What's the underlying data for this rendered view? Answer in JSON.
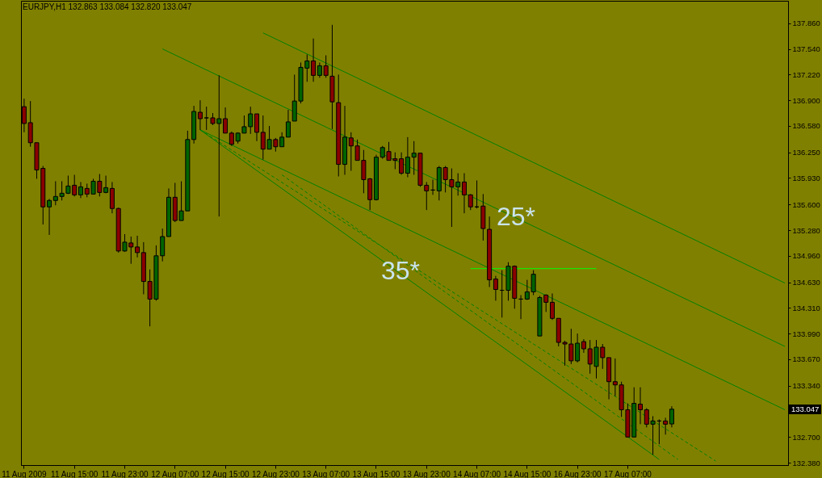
{
  "chart_data": {
    "type": "candlestick",
    "title": "EURJPY,H1  132.863 133.084 132.820 133.047",
    "categories": [
      "11 Aug 2009",
      null,
      null,
      null,
      null,
      null,
      null,
      null,
      "11 Aug 15:00",
      null,
      null,
      null,
      null,
      null,
      null,
      null,
      "11 Aug 23:00",
      null,
      null,
      null,
      null,
      null,
      null,
      null,
      "12 Aug 07:00",
      null,
      null,
      null,
      null,
      null,
      null,
      null,
      "12 Aug 15:00",
      null,
      null,
      null,
      null,
      null,
      null,
      null,
      "12 Aug 23:00",
      null,
      null,
      null,
      null,
      null,
      null,
      null,
      "13 Aug 07:00",
      null,
      null,
      null,
      null,
      null,
      null,
      null,
      "13 Aug 15:00",
      null,
      null,
      null,
      null,
      null,
      null,
      null,
      "13 Aug 23:00",
      null,
      null,
      null,
      null,
      null,
      null,
      null,
      "14 Aug 07:00",
      null,
      null,
      null,
      null,
      null,
      null,
      null,
      "14 Aug 15:00",
      null,
      null,
      null,
      null,
      null,
      null,
      null,
      "16 Aug 23:00",
      null,
      null,
      null,
      null,
      null,
      null,
      null,
      "17 Aug 07:00",
      null,
      null,
      null,
      null,
      null,
      null,
      null,
      null,
      null,
      null,
      null,
      null,
      null,
      null,
      null,
      null,
      null,
      null,
      null,
      null,
      null,
      null,
      null,
      null,
      null
    ],
    "ohlc": [
      [
        136.82,
        136.92,
        136.5,
        136.61
      ],
      [
        136.62,
        136.89,
        136.32,
        136.37
      ],
      [
        136.37,
        136.37,
        135.92,
        136.03
      ],
      [
        136.05,
        136.08,
        135.35,
        135.57
      ],
      [
        135.57,
        135.67,
        135.22,
        135.65
      ],
      [
        135.65,
        135.89,
        135.59,
        135.7
      ],
      [
        135.7,
        135.89,
        135.65,
        135.74
      ],
      [
        135.74,
        135.96,
        135.73,
        135.83
      ],
      [
        135.84,
        135.97,
        135.7,
        135.72
      ],
      [
        135.72,
        135.88,
        135.68,
        135.82
      ],
      [
        135.8,
        135.86,
        135.69,
        135.73
      ],
      [
        135.73,
        135.92,
        135.73,
        135.89
      ],
      [
        135.89,
        135.98,
        135.7,
        135.75
      ],
      [
        135.75,
        135.96,
        135.74,
        135.81
      ],
      [
        135.8,
        135.88,
        135.49,
        135.55
      ],
      [
        135.55,
        135.56,
        135.0,
        135.02
      ],
      [
        135.02,
        135.23,
        135.01,
        135.13
      ],
      [
        135.12,
        135.2,
        134.86,
        135.07
      ],
      [
        135.07,
        135.21,
        134.94,
        135.0
      ],
      [
        135.0,
        135.13,
        134.48,
        134.64
      ],
      [
        134.64,
        134.79,
        134.08,
        134.42
      ],
      [
        134.42,
        135.09,
        134.4,
        134.96
      ],
      [
        134.96,
        135.3,
        134.89,
        135.2
      ],
      [
        135.2,
        135.8,
        135.2,
        135.69
      ],
      [
        135.69,
        135.87,
        135.38,
        135.4
      ],
      [
        135.4,
        135.89,
        135.4,
        135.52
      ],
      [
        135.52,
        136.52,
        135.52,
        136.41
      ],
      [
        136.41,
        136.83,
        136.36,
        136.76
      ],
      [
        136.75,
        136.9,
        136.53,
        136.67
      ],
      [
        136.68,
        136.82,
        136.53,
        136.68
      ],
      [
        136.68,
        136.74,
        136.59,
        136.61
      ],
      [
        136.61,
        137.21,
        135.45,
        136.67
      ],
      [
        136.67,
        136.81,
        136.49,
        136.49
      ],
      [
        136.49,
        136.51,
        136.33,
        136.35
      ],
      [
        136.39,
        136.5,
        136.36,
        136.49
      ],
      [
        136.49,
        136.71,
        136.49,
        136.57
      ],
      [
        136.57,
        136.82,
        136.48,
        136.73
      ],
      [
        136.73,
        136.73,
        136.39,
        136.5
      ],
      [
        136.5,
        136.71,
        136.16,
        136.29
      ],
      [
        136.29,
        136.58,
        136.29,
        136.41
      ],
      [
        136.41,
        136.43,
        136.26,
        136.32
      ],
      [
        136.32,
        136.5,
        136.32,
        136.44
      ],
      [
        136.44,
        136.78,
        136.44,
        136.63
      ],
      [
        136.64,
        137.22,
        136.64,
        136.89
      ],
      [
        136.89,
        137.37,
        136.86,
        137.31
      ],
      [
        137.3,
        137.47,
        137.13,
        137.39
      ],
      [
        137.39,
        137.67,
        137.13,
        137.21
      ],
      [
        137.21,
        137.37,
        137.18,
        137.33
      ],
      [
        137.33,
        137.46,
        137.18,
        137.21
      ],
      [
        137.2,
        137.84,
        136.54,
        136.88
      ],
      [
        136.87,
        137.22,
        135.95,
        136.1
      ],
      [
        136.1,
        136.83,
        135.97,
        136.44
      ],
      [
        136.43,
        136.5,
        136.02,
        136.33
      ],
      [
        136.33,
        136.41,
        136.15,
        136.15
      ],
      [
        136.15,
        136.28,
        135.74,
        135.91
      ],
      [
        135.92,
        135.93,
        135.53,
        135.66
      ],
      [
        135.66,
        136.22,
        135.65,
        136.19
      ],
      [
        136.19,
        136.33,
        136.17,
        136.31
      ],
      [
        136.26,
        136.38,
        136.15,
        136.15
      ],
      [
        136.17,
        136.25,
        136.04,
        136.15
      ],
      [
        136.17,
        136.25,
        135.97,
        135.99
      ],
      [
        135.99,
        136.44,
        135.94,
        136.19
      ],
      [
        136.19,
        136.39,
        135.97,
        136.24
      ],
      [
        136.24,
        136.24,
        135.82,
        135.84
      ],
      [
        135.84,
        135.88,
        135.53,
        135.77
      ],
      [
        135.78,
        135.91,
        135.72,
        135.78
      ],
      [
        135.77,
        136.08,
        135.65,
        136.06
      ],
      [
        136.06,
        136.08,
        135.75,
        135.91
      ],
      [
        135.91,
        136.05,
        135.32,
        135.82
      ],
      [
        135.82,
        135.99,
        135.71,
        135.88
      ],
      [
        135.88,
        135.99,
        135.49,
        135.72
      ],
      [
        135.72,
        135.73,
        135.53,
        135.57
      ],
      [
        135.57,
        135.9,
        135.55,
        135.57
      ],
      [
        135.58,
        135.73,
        135.15,
        135.3
      ],
      [
        135.29,
        135.45,
        134.57,
        134.66
      ],
      [
        134.67,
        134.71,
        134.4,
        134.54
      ],
      [
        134.53,
        134.78,
        134.19,
        134.53
      ],
      [
        134.53,
        134.88,
        134.4,
        134.83
      ],
      [
        134.83,
        134.84,
        134.3,
        134.43
      ],
      [
        134.42,
        134.47,
        134.17,
        134.42
      ],
      [
        134.42,
        134.66,
        134.41,
        134.51
      ],
      [
        134.51,
        134.78,
        134.47,
        134.73
      ],
      [
        133.96,
        134.46,
        133.96,
        134.44
      ],
      [
        134.47,
        134.48,
        134.26,
        134.38
      ],
      [
        134.38,
        134.49,
        134.16,
        134.18
      ],
      [
        134.18,
        134.18,
        133.83,
        133.88
      ],
      [
        133.88,
        133.9,
        133.59,
        133.86
      ],
      [
        133.86,
        134.05,
        133.61,
        133.65
      ],
      [
        133.65,
        133.99,
        133.63,
        133.87
      ],
      [
        133.89,
        133.92,
        133.75,
        133.8
      ],
      [
        133.8,
        133.91,
        133.49,
        133.61
      ],
      [
        133.58,
        133.91,
        133.43,
        133.82
      ],
      [
        133.82,
        133.86,
        133.55,
        133.69
      ],
      [
        133.69,
        133.69,
        133.17,
        133.39
      ],
      [
        133.39,
        133.68,
        133.21,
        133.35
      ],
      [
        133.35,
        133.39,
        132.95,
        133.04
      ],
      [
        133.04,
        133.12,
        132.7,
        132.7
      ],
      [
        132.7,
        133.32,
        132.7,
        133.12
      ],
      [
        133.11,
        133.32,
        132.86,
        133.04
      ],
      [
        133.04,
        133.06,
        132.82,
        132.86
      ],
      [
        132.86,
        132.96,
        132.48,
        132.9
      ],
      [
        132.9,
        132.92,
        132.61,
        132.9
      ],
      [
        132.9,
        132.94,
        132.73,
        132.86
      ],
      [
        132.863,
        133.084,
        132.82,
        133.047
      ],
      null,
      null,
      null,
      null,
      null,
      null,
      null,
      null,
      null,
      null,
      null,
      null,
      null,
      null,
      null,
      null,
      null,
      null
    ],
    "series": [
      {
        "type": "line",
        "color": "#007f00",
        "line_style": "solid",
        "values": [
          null,
          null,
          null,
          null,
          null,
          null,
          null,
          null,
          null,
          null,
          null,
          null,
          null,
          null,
          null,
          null,
          null,
          null,
          null,
          null,
          null,
          null,
          null,
          null,
          null,
          null,
          null,
          null,
          null,
          null,
          null,
          null,
          null,
          null,
          null,
          null,
          null,
          null,
          137.74,
          null,
          null,
          null,
          null,
          null,
          null,
          null,
          null,
          null,
          null,
          null,
          null,
          null,
          null,
          null,
          null,
          null,
          null,
          null,
          null,
          null,
          null,
          null,
          null,
          null,
          null,
          null,
          null,
          null,
          null,
          null,
          null,
          null,
          null,
          null,
          null,
          null,
          null,
          null,
          null,
          null,
          null,
          null,
          null,
          null,
          null,
          null,
          null,
          null,
          null,
          null,
          null,
          null,
          null,
          null,
          null,
          null,
          null,
          null,
          null,
          null,
          null,
          null,
          null,
          null,
          null,
          null,
          null,
          null,
          null,
          null,
          null,
          null,
          null,
          null,
          null,
          null,
          null,
          null,
          null,
          null,
          null,
          134.62
        ]
      },
      {
        "type": "line",
        "color": "#007f00",
        "line_style": "solid",
        "values": [
          null,
          null,
          null,
          null,
          null,
          null,
          null,
          null,
          null,
          null,
          null,
          null,
          null,
          null,
          null,
          null,
          null,
          null,
          null,
          null,
          null,
          null,
          137.54,
          null,
          null,
          null,
          null,
          null,
          null,
          null,
          null,
          null,
          null,
          null,
          null,
          null,
          null,
          null,
          null,
          null,
          null,
          null,
          null,
          null,
          null,
          null,
          null,
          null,
          null,
          null,
          null,
          null,
          null,
          null,
          null,
          null,
          null,
          null,
          null,
          null,
          null,
          null,
          null,
          null,
          null,
          null,
          null,
          null,
          null,
          null,
          null,
          null,
          null,
          null,
          null,
          null,
          null,
          null,
          null,
          null,
          null,
          null,
          null,
          null,
          null,
          null,
          null,
          null,
          null,
          null,
          null,
          null,
          null,
          null,
          null,
          null,
          null,
          null,
          null,
          null,
          null,
          null,
          null,
          null,
          null,
          null,
          null,
          null,
          null,
          null,
          null,
          null,
          null,
          null,
          null,
          null,
          null,
          null,
          null,
          null,
          null,
          133.83
        ]
      },
      {
        "type": "line",
        "color": "#007f00",
        "line_style": "solid",
        "values": [
          null,
          null,
          null,
          null,
          null,
          null,
          null,
          null,
          null,
          null,
          null,
          null,
          null,
          null,
          null,
          null,
          null,
          null,
          null,
          null,
          null,
          null,
          null,
          null,
          null,
          null,
          null,
          null,
          136.53,
          null,
          null,
          null,
          null,
          null,
          null,
          null,
          null,
          null,
          null,
          null,
          null,
          null,
          null,
          null,
          null,
          null,
          null,
          null,
          null,
          null,
          null,
          null,
          null,
          null,
          null,
          null,
          null,
          null,
          null,
          null,
          null,
          null,
          null,
          null,
          null,
          null,
          null,
          null,
          null,
          null,
          null,
          null,
          null,
          null,
          null,
          null,
          null,
          null,
          null,
          null,
          null,
          null,
          null,
          null,
          null,
          null,
          null,
          null,
          null,
          null,
          null,
          null,
          null,
          null,
          null,
          null,
          null,
          null,
          null,
          null,
          null,
          null,
          null,
          null,
          null,
          null,
          null,
          null,
          null,
          null,
          null,
          null,
          null,
          null,
          null,
          null,
          null,
          null,
          null,
          null,
          null,
          133.04
        ]
      },
      {
        "type": "line",
        "color": "#007f00",
        "line_style": "solid",
        "values": [
          null,
          null,
          null,
          null,
          null,
          null,
          null,
          null,
          null,
          null,
          null,
          null,
          null,
          null,
          null,
          null,
          null,
          null,
          null,
          null,
          null,
          null,
          null,
          null,
          null,
          null,
          null,
          null,
          136.53,
          null,
          null,
          null,
          null,
          null,
          null,
          null,
          null,
          null,
          null,
          null,
          null,
          null,
          null,
          null,
          null,
          null,
          null,
          null,
          null,
          null,
          null,
          null,
          null,
          null,
          null,
          null,
          null,
          null,
          null,
          null,
          null,
          null,
          null,
          null,
          null,
          null,
          null,
          null,
          null,
          null,
          null,
          null,
          null,
          null,
          null,
          null,
          null,
          null,
          null,
          null,
          null,
          null,
          null,
          null,
          null,
          null,
          null,
          null,
          null,
          null,
          null,
          null,
          null,
          null,
          null,
          null,
          null,
          null,
          null,
          null,
          null,
          132.42,
          null,
          null,
          null,
          null,
          null,
          null,
          null,
          null,
          null,
          null,
          null,
          null,
          null,
          null,
          null,
          null,
          null,
          null,
          null,
          null
        ]
      },
      {
        "type": "line",
        "color": "#007f00",
        "line_style": "dashed",
        "values": [
          null,
          null,
          null,
          null,
          null,
          null,
          null,
          null,
          null,
          null,
          null,
          null,
          null,
          null,
          null,
          null,
          null,
          null,
          null,
          null,
          null,
          null,
          null,
          null,
          null,
          null,
          null,
          null,
          136.53,
          null,
          null,
          null,
          null,
          null,
          null,
          null,
          null,
          null,
          null,
          null,
          null,
          null,
          null,
          null,
          null,
          null,
          null,
          null,
          null,
          null,
          null,
          null,
          null,
          null,
          null,
          null,
          null,
          null,
          null,
          null,
          null,
          null,
          null,
          null,
          null,
          null,
          null,
          null,
          null,
          null,
          null,
          null,
          null,
          null,
          null,
          null,
          null,
          null,
          null,
          null,
          null,
          null,
          null,
          null,
          null,
          null,
          null,
          null,
          null,
          null,
          null,
          null,
          null,
          null,
          null,
          null,
          null,
          null,
          null,
          null,
          null,
          null,
          null,
          null,
          null,
          null,
          null,
          null,
          null,
          null,
          132.4,
          null,
          null,
          null,
          null,
          null,
          null,
          null,
          null,
          null,
          null,
          null
        ]
      },
      {
        "type": "line",
        "color": "#007f00",
        "line_style": "dashed",
        "values": [
          null,
          null,
          null,
          null,
          null,
          null,
          null,
          null,
          null,
          null,
          null,
          null,
          null,
          null,
          null,
          null,
          null,
          null,
          null,
          null,
          null,
          null,
          null,
          null,
          null,
          null,
          null,
          null,
          null,
          null,
          null,
          null,
          null,
          null,
          null,
          null,
          null,
          null,
          null,
          null,
          null,
          135.97,
          null,
          null,
          null,
          null,
          null,
          null,
          null,
          null,
          null,
          null,
          null,
          null,
          null,
          null,
          null,
          null,
          null,
          null,
          null,
          null,
          null,
          null,
          null,
          null,
          null,
          null,
          null,
          null,
          null,
          null,
          null,
          null,
          null,
          null,
          null,
          null,
          null,
          null,
          null,
          null,
          null,
          null,
          null,
          null,
          null,
          null,
          null,
          null,
          null,
          null,
          null,
          null,
          null,
          null,
          null,
          null,
          null,
          null,
          null,
          null,
          null,
          null,
          132.42,
          null,
          null,
          null,
          null,
          null,
          null,
          null,
          null,
          null,
          null,
          null,
          null,
          null,
          null,
          null,
          null,
          null
        ]
      },
      {
        "type": "line",
        "color": "#00ff00",
        "line_style": "solid",
        "values": [
          null,
          null,
          null,
          null,
          null,
          null,
          null,
          null,
          null,
          null,
          null,
          null,
          null,
          null,
          null,
          null,
          null,
          null,
          null,
          null,
          null,
          null,
          null,
          null,
          null,
          null,
          null,
          null,
          null,
          null,
          null,
          null,
          null,
          null,
          null,
          null,
          null,
          null,
          null,
          null,
          null,
          null,
          null,
          null,
          null,
          null,
          null,
          null,
          null,
          null,
          null,
          null,
          null,
          null,
          null,
          null,
          null,
          null,
          null,
          null,
          null,
          null,
          null,
          null,
          null,
          null,
          null,
          null,
          null,
          null,
          null,
          134.8,
          null,
          null,
          null,
          null,
          null,
          null,
          null,
          null,
          null,
          null,
          null,
          null,
          null,
          null,
          null,
          null,
          null,
          null,
          null,
          134.8,
          null,
          null,
          null,
          null,
          null,
          null,
          null,
          null,
          null,
          null,
          null,
          null,
          null,
          null,
          null,
          null,
          null,
          null,
          null,
          null,
          null,
          null,
          null,
          null,
          null,
          null,
          null,
          null,
          null,
          null
        ]
      }
    ],
    "ylim": [
      132.35,
      138.14
    ],
    "yticks": [
      {
        "value": 137.86,
        "label": "137.860"
      },
      {
        "value": 137.54,
        "label": "137.540"
      },
      {
        "value": 137.22,
        "label": "137.220"
      },
      {
        "value": 136.9,
        "label": "136.900"
      },
      {
        "value": 136.58,
        "label": "136.580"
      },
      {
        "value": 136.25,
        "label": "136.250"
      },
      {
        "value": 135.93,
        "label": "135.930"
      },
      {
        "value": 135.6,
        "label": "135.600"
      },
      {
        "value": 135.28,
        "label": "135.280"
      },
      {
        "value": 134.96,
        "label": "134.960"
      },
      {
        "value": 134.63,
        "label": "134.630"
      },
      {
        "value": 134.31,
        "label": "134.310"
      },
      {
        "value": 133.99,
        "label": "133.990"
      },
      {
        "value": 133.67,
        "label": "133.670"
      },
      {
        "value": 133.34,
        "label": "133.340"
      },
      {
        "value": 132.7,
        "label": "132.700"
      },
      {
        "value": 132.38,
        "label": "132.380"
      }
    ],
    "annotations": [
      "25*",
      "35*",
      "133.047"
    ],
    "grid": false,
    "marker": "none"
  }
}
